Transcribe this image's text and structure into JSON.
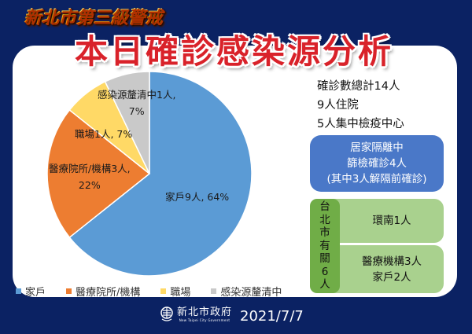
{
  "header": {
    "alert_title": "新北市第三級警戒",
    "main_title": "本日確診感染源分析"
  },
  "colors": {
    "background": "#0b2263",
    "title_red": "#d9222a",
    "home": "#5b9bd5",
    "medical": "#ed7d31",
    "workplace": "#ffd966",
    "unknown": "#c9c9c9",
    "blue_box": "#4a78c8",
    "green_dark": "#70ad47",
    "green_light": "#a9d18e"
  },
  "chart_data": {
    "type": "pie",
    "title": "本日確診感染源分析",
    "categories": [
      "家戶",
      "醫療院所/機構",
      "職場",
      "感染源釐清中"
    ],
    "values": [
      9,
      3,
      1,
      1
    ],
    "percentages": [
      64,
      22,
      7,
      7
    ],
    "unit": "人",
    "data_labels": [
      "家戶9人, 64%",
      "醫療院所/機構3人, 22%",
      "職場1人, 7%",
      "感染源釐清中1人, 7%"
    ],
    "start_angle": "12 o'clock, clockwise",
    "legend_position": "bottom"
  },
  "pie": {
    "labels": {
      "home_line1": "家戶9人, 64%",
      "medical_line1": "醫療院所/機構3人,",
      "medical_line2": "22%",
      "workplace_line1": "職場1人, 7%",
      "unknown_line1": "感染源釐清中1人,",
      "unknown_line2": "7%"
    }
  },
  "legend": {
    "items": [
      {
        "label": "家戶"
      },
      {
        "label": "醫療院所/機構"
      },
      {
        "label": "職場"
      },
      {
        "label": "感染源釐清中"
      }
    ]
  },
  "stats": {
    "total": "確診數總計14人",
    "hospitalized": "9人住院",
    "quarantine_center": "5人集中檢疫中心"
  },
  "home_isolation": {
    "line1": "居家隔離中",
    "line2": "篩檢確診4人",
    "line3": "(其中3人解隔前確診)"
  },
  "taipei": {
    "side_chars": [
      "台",
      "北",
      "市",
      "有",
      "關",
      "6",
      "人"
    ],
    "box1": "環南1人",
    "box2_line1": "醫療機構3人",
    "box2_line2": "家戶2人"
  },
  "footer": {
    "logo_zh": "新北市政府",
    "logo_en": "New Taipei City Government",
    "date": "2021/7/7"
  }
}
